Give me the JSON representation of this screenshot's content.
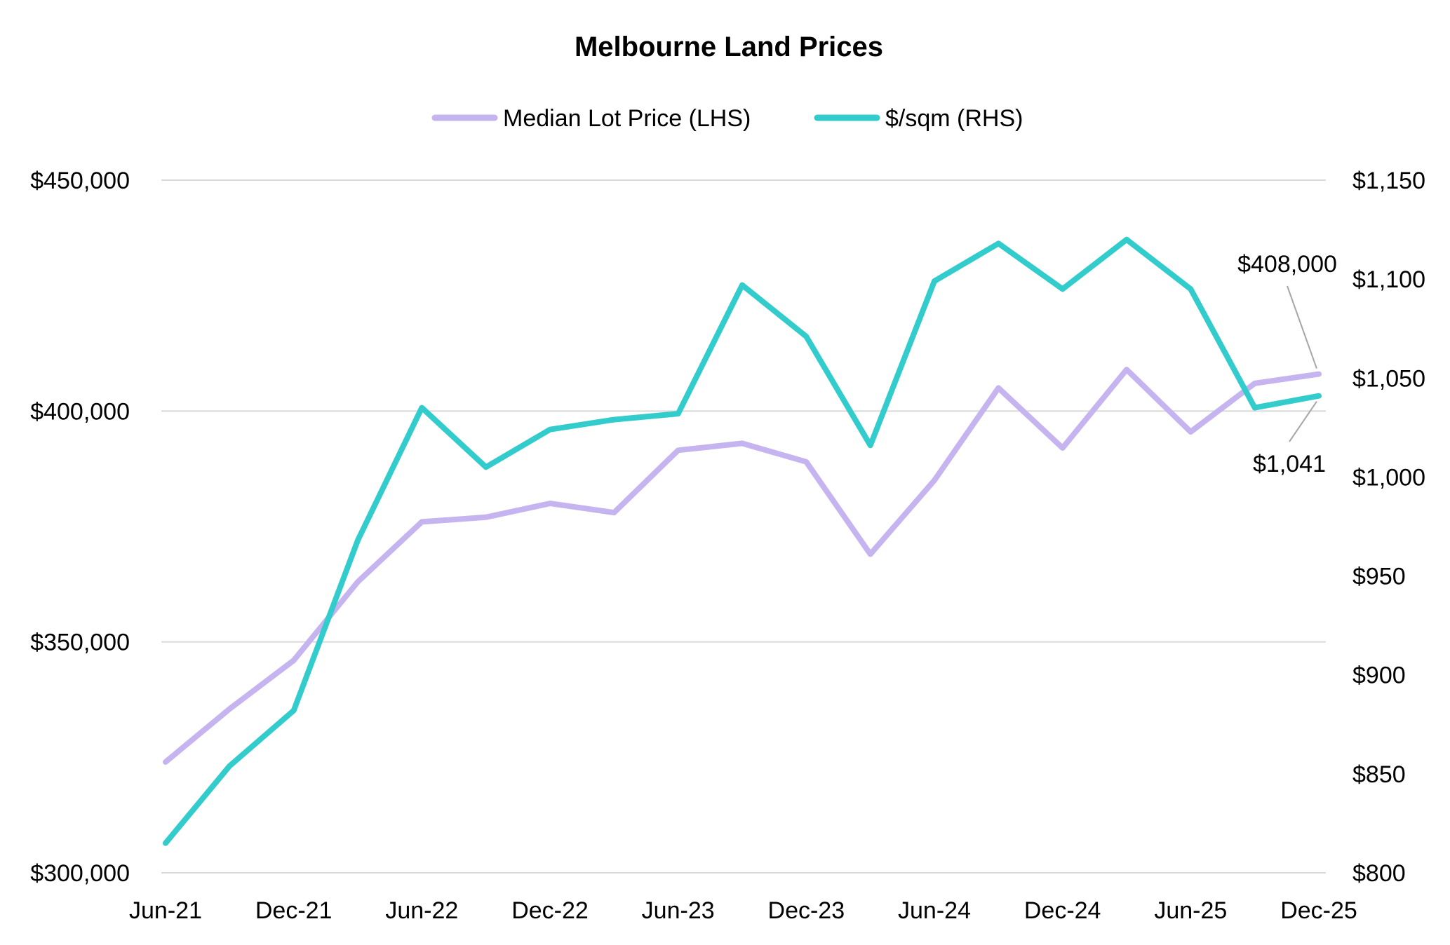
{
  "chart_data": {
    "type": "line",
    "title": "Melbourne Land Prices",
    "x": [
      "Jun-21",
      "Sep-21",
      "Dec-21",
      "Mar-22",
      "Jun-22",
      "Sep-22",
      "Dec-22",
      "Mar-23",
      "Jun-23",
      "Sep-23",
      "Dec-23",
      "Mar-24",
      "Jun-24",
      "Sep-24",
      "Dec-24",
      "Mar-25",
      "Jun-25",
      "Sep-25",
      "Dec-25"
    ],
    "x_tick_labels": [
      "Jun-21",
      "Dec-21",
      "Jun-22",
      "Dec-22",
      "Jun-23",
      "Dec-23",
      "Jun-24",
      "Dec-24",
      "Jun-25",
      "Dec-25"
    ],
    "series": [
      {
        "name": "Median Lot Price (LHS)",
        "axis": "left",
        "color": "#c5b4ef",
        "values": [
          324000,
          335500,
          346000,
          363000,
          376000,
          377000,
          380000,
          378000,
          391500,
          393000,
          389000,
          369000,
          385000,
          405000,
          392000,
          409000,
          395500,
          406000,
          408000
        ]
      },
      {
        "name": "$/sqm (RHS)",
        "axis": "right",
        "color": "#33cccc",
        "values": [
          815,
          854,
          882,
          968,
          1035,
          1005,
          1024,
          1029,
          1032,
          1097,
          1071,
          1016,
          1099,
          1118,
          1095,
          1120,
          1095,
          1035,
          1041
        ]
      }
    ],
    "y_left": {
      "range": [
        300000,
        450000
      ],
      "ticks": [
        300000,
        350000,
        400000,
        450000
      ],
      "tick_labels": [
        "$300,000",
        "$350,000",
        "$400,000",
        "$450,000"
      ]
    },
    "y_right": {
      "range": [
        800,
        1150
      ],
      "ticks": [
        800,
        850,
        900,
        950,
        1000,
        1050,
        1100,
        1150
      ],
      "tick_labels": [
        "$800",
        "$850",
        "$900",
        "$950",
        "$1,000",
        "$1,050",
        "$1,100",
        "$1,150"
      ]
    },
    "annotations": [
      {
        "label": "$408,000",
        "series": 0,
        "point": 18
      },
      {
        "label": "$1,041",
        "series": 1,
        "point": 18
      }
    ],
    "legend": "top-center",
    "grid": true,
    "xlabel": "",
    "ylabel": ""
  }
}
